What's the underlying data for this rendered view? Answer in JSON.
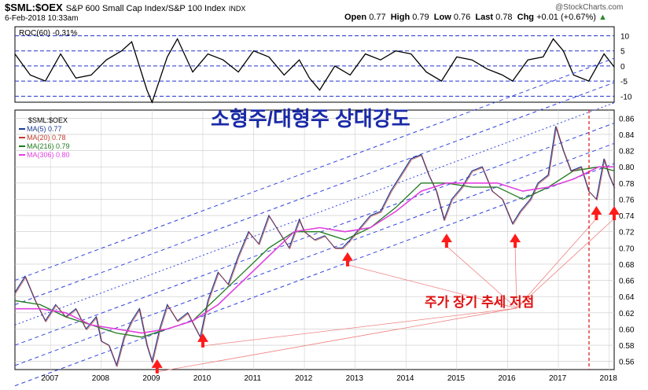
{
  "header": {
    "symbol": "$SML:$OEX",
    "name": "S&P 600 Small Cap Index/S&P 100 Index",
    "exchange": "INDX",
    "date": "6-Feb-2018 10:33am",
    "open_label": "Open",
    "open": "0.77",
    "high_label": "High",
    "high": "0.79",
    "low_label": "Low",
    "low": "0.76",
    "last_label": "Last",
    "last": "0.78",
    "chg_label": "Chg",
    "chg": "+0.01 (+0.67%)",
    "chg_icon": "up-triangle-icon",
    "brand": "@StockCharts.com"
  },
  "roc_panel": {
    "label": "ROC(60) -0.31%",
    "ticks": [
      "10",
      "5",
      "0",
      "-5",
      "-10"
    ]
  },
  "price_panel": {
    "title": "소형주/대형주 상대강도",
    "legend": [
      {
        "label": "$SML:$OEX",
        "color": "#000000"
      },
      {
        "label": "MA(5) 0.77",
        "color": "#1f3a93"
      },
      {
        "label": "MA(20) 0.78",
        "color": "#c0392b"
      },
      {
        "label": "MA(216) 0.79",
        "color": "#1e7b1e"
      },
      {
        "label": "MA(306) 0.80",
        "color": "#e040e0"
      }
    ],
    "annotation": "주가 장기 추세 저점",
    "y_ticks": [
      "0.86",
      "0.84",
      "0.82",
      "0.80",
      "0.78",
      "0.76",
      "0.74",
      "0.72",
      "0.70",
      "0.68",
      "0.66",
      "0.64",
      "0.62",
      "0.60",
      "0.58",
      "0.56"
    ],
    "x_ticks": [
      "2007",
      "2008",
      "2009",
      "2010",
      "2011",
      "2012",
      "2013",
      "2014",
      "2015",
      "2016",
      "2017",
      "2018"
    ]
  },
  "chart_data": {
    "type": "line",
    "x_start": 2006.3,
    "x_end": 2018.1,
    "ylim": [
      0.55,
      0.87
    ],
    "roc_ylim": [
      -12,
      13
    ],
    "series": [
      {
        "name": "$SML:$OEX",
        "values": [
          [
            2006.3,
            0.645
          ],
          [
            2006.5,
            0.665
          ],
          [
            2006.7,
            0.635
          ],
          [
            2006.9,
            0.61
          ],
          [
            2007.1,
            0.63
          ],
          [
            2007.3,
            0.615
          ],
          [
            2007.5,
            0.625
          ],
          [
            2007.7,
            0.6
          ],
          [
            2007.9,
            0.615
          ],
          [
            2008.0,
            0.585
          ],
          [
            2008.15,
            0.58
          ],
          [
            2008.3,
            0.555
          ],
          [
            2008.45,
            0.59
          ],
          [
            2008.6,
            0.61
          ],
          [
            2008.75,
            0.625
          ],
          [
            2008.9,
            0.58
          ],
          [
            2009.0,
            0.56
          ],
          [
            2009.15,
            0.6
          ],
          [
            2009.3,
            0.63
          ],
          [
            2009.5,
            0.61
          ],
          [
            2009.7,
            0.62
          ],
          [
            2009.95,
            0.59
          ],
          [
            2010.1,
            0.635
          ],
          [
            2010.3,
            0.67
          ],
          [
            2010.5,
            0.655
          ],
          [
            2010.7,
            0.69
          ],
          [
            2010.9,
            0.72
          ],
          [
            2011.1,
            0.705
          ],
          [
            2011.3,
            0.74
          ],
          [
            2011.5,
            0.72
          ],
          [
            2011.7,
            0.7
          ],
          [
            2011.9,
            0.735
          ],
          [
            2012.0,
            0.72
          ],
          [
            2012.2,
            0.71
          ],
          [
            2012.4,
            0.715
          ],
          [
            2012.6,
            0.7
          ],
          [
            2012.75,
            0.7
          ],
          [
            2012.9,
            0.71
          ],
          [
            2013.1,
            0.725
          ],
          [
            2013.3,
            0.74
          ],
          [
            2013.5,
            0.745
          ],
          [
            2013.7,
            0.77
          ],
          [
            2013.9,
            0.79
          ],
          [
            2014.1,
            0.81
          ],
          [
            2014.3,
            0.815
          ],
          [
            2014.45,
            0.79
          ],
          [
            2014.6,
            0.77
          ],
          [
            2014.75,
            0.735
          ],
          [
            2014.9,
            0.76
          ],
          [
            2015.1,
            0.775
          ],
          [
            2015.3,
            0.795
          ],
          [
            2015.5,
            0.8
          ],
          [
            2015.7,
            0.77
          ],
          [
            2015.9,
            0.76
          ],
          [
            2016.1,
            0.73
          ],
          [
            2016.25,
            0.745
          ],
          [
            2016.45,
            0.76
          ],
          [
            2016.6,
            0.78
          ],
          [
            2016.8,
            0.79
          ],
          [
            2016.95,
            0.85
          ],
          [
            2017.1,
            0.82
          ],
          [
            2017.25,
            0.795
          ],
          [
            2017.45,
            0.8
          ],
          [
            2017.6,
            0.77
          ],
          [
            2017.75,
            0.76
          ],
          [
            2017.9,
            0.81
          ],
          [
            2018.0,
            0.79
          ],
          [
            2018.1,
            0.775
          ]
        ]
      },
      {
        "name": "MA(216)",
        "values": [
          [
            2006.3,
            0.635
          ],
          [
            2006.8,
            0.63
          ],
          [
            2007.3,
            0.615
          ],
          [
            2007.8,
            0.605
          ],
          [
            2008.3,
            0.595
          ],
          [
            2008.8,
            0.59
          ],
          [
            2009.3,
            0.6
          ],
          [
            2009.8,
            0.61
          ],
          [
            2010.3,
            0.64
          ],
          [
            2010.8,
            0.67
          ],
          [
            2011.3,
            0.7
          ],
          [
            2011.8,
            0.72
          ],
          [
            2012.3,
            0.72
          ],
          [
            2012.8,
            0.71
          ],
          [
            2013.3,
            0.725
          ],
          [
            2013.8,
            0.75
          ],
          [
            2014.3,
            0.78
          ],
          [
            2014.8,
            0.78
          ],
          [
            2015.3,
            0.775
          ],
          [
            2015.8,
            0.775
          ],
          [
            2016.3,
            0.76
          ],
          [
            2016.8,
            0.775
          ],
          [
            2017.3,
            0.795
          ],
          [
            2017.8,
            0.8
          ],
          [
            2018.1,
            0.795
          ]
        ]
      },
      {
        "name": "MA(306)",
        "values": [
          [
            2006.3,
            0.625
          ],
          [
            2006.8,
            0.625
          ],
          [
            2007.3,
            0.62
          ],
          [
            2007.8,
            0.605
          ],
          [
            2008.3,
            0.6
          ],
          [
            2008.8,
            0.595
          ],
          [
            2009.3,
            0.6
          ],
          [
            2009.8,
            0.61
          ],
          [
            2010.3,
            0.63
          ],
          [
            2010.8,
            0.66
          ],
          [
            2011.3,
            0.69
          ],
          [
            2011.8,
            0.72
          ],
          [
            2012.3,
            0.725
          ],
          [
            2012.8,
            0.72
          ],
          [
            2013.3,
            0.725
          ],
          [
            2013.8,
            0.745
          ],
          [
            2014.3,
            0.77
          ],
          [
            2014.8,
            0.78
          ],
          [
            2015.3,
            0.78
          ],
          [
            2015.8,
            0.78
          ],
          [
            2016.3,
            0.77
          ],
          [
            2016.8,
            0.775
          ],
          [
            2017.3,
            0.785
          ],
          [
            2017.8,
            0.8
          ],
          [
            2018.1,
            0.8
          ]
        ]
      },
      {
        "name": "ROC(60)",
        "values": [
          [
            2006.3,
            4
          ],
          [
            2006.6,
            -3
          ],
          [
            2006.9,
            -5
          ],
          [
            2007.2,
            4
          ],
          [
            2007.5,
            -4
          ],
          [
            2007.8,
            -3
          ],
          [
            2008.1,
            2
          ],
          [
            2008.4,
            5
          ],
          [
            2008.6,
            8
          ],
          [
            2008.9,
            -8
          ],
          [
            2009.0,
            -12
          ],
          [
            2009.3,
            3
          ],
          [
            2009.5,
            9
          ],
          [
            2009.8,
            -2
          ],
          [
            2010.1,
            4
          ],
          [
            2010.4,
            2
          ],
          [
            2010.7,
            -2
          ],
          [
            2011.0,
            5
          ],
          [
            2011.3,
            3
          ],
          [
            2011.6,
            -3
          ],
          [
            2011.9,
            2
          ],
          [
            2012.1,
            -4
          ],
          [
            2012.3,
            -8
          ],
          [
            2012.6,
            0
          ],
          [
            2012.9,
            -3
          ],
          [
            2013.2,
            4
          ],
          [
            2013.5,
            2
          ],
          [
            2013.8,
            5
          ],
          [
            2014.1,
            4
          ],
          [
            2014.4,
            -2
          ],
          [
            2014.7,
            -5
          ],
          [
            2015.0,
            3
          ],
          [
            2015.3,
            2
          ],
          [
            2015.6,
            -1
          ],
          [
            2015.9,
            -3
          ],
          [
            2016.1,
            -5
          ],
          [
            2016.4,
            2
          ],
          [
            2016.7,
            3
          ],
          [
            2016.9,
            9
          ],
          [
            2017.1,
            5
          ],
          [
            2017.3,
            -3
          ],
          [
            2017.6,
            -5
          ],
          [
            2017.9,
            4
          ],
          [
            2018.1,
            -0.31
          ]
        ]
      }
    ]
  }
}
